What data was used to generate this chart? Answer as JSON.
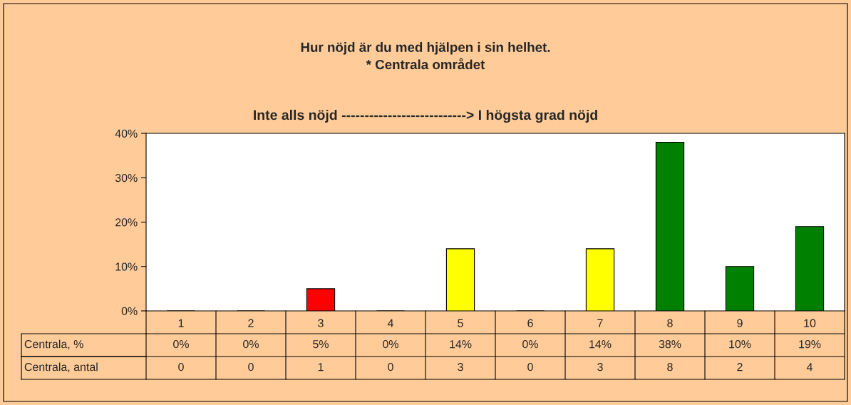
{
  "chart_data": {
    "type": "bar",
    "title": "Hur nöjd är du med hjälpen i sin helhet.\n* Centrala området",
    "subtitle": "Inte alls nöjd ---------------------------> I högsta grad nöjd",
    "categories": [
      "1",
      "2",
      "3",
      "4",
      "5",
      "6",
      "7",
      "8",
      "9",
      "10"
    ],
    "series": [
      {
        "name": "Centrala, %",
        "values": [
          0,
          0,
          5,
          0,
          14,
          0,
          14,
          38,
          10,
          19
        ],
        "colors": [
          "#ff0000",
          "#ff0000",
          "#ff0000",
          "#ff0000",
          "#ffff00",
          "#ffff00",
          "#ffff00",
          "#008000",
          "#008000",
          "#008000"
        ],
        "value_labels": [
          "0%",
          "0%",
          "5%",
          "0%",
          "14%",
          "0%",
          "14%",
          "38%",
          "10%",
          "19%"
        ]
      }
    ],
    "annotations": [
      "Centrala, antal",
      "0",
      "0",
      "1",
      "0",
      "3",
      "0",
      "3",
      "8",
      "2",
      "4"
    ],
    "ylim": [
      0,
      40
    ],
    "yticks": [
      {
        "value": 0,
        "label": "0%"
      },
      {
        "value": 10,
        "label": "10%"
      },
      {
        "value": 20,
        "label": "20%"
      },
      {
        "value": 30,
        "label": "30%"
      },
      {
        "value": 40,
        "label": "40%"
      }
    ],
    "data_labels": true,
    "grid": false,
    "legend": "bottom left"
  }
}
